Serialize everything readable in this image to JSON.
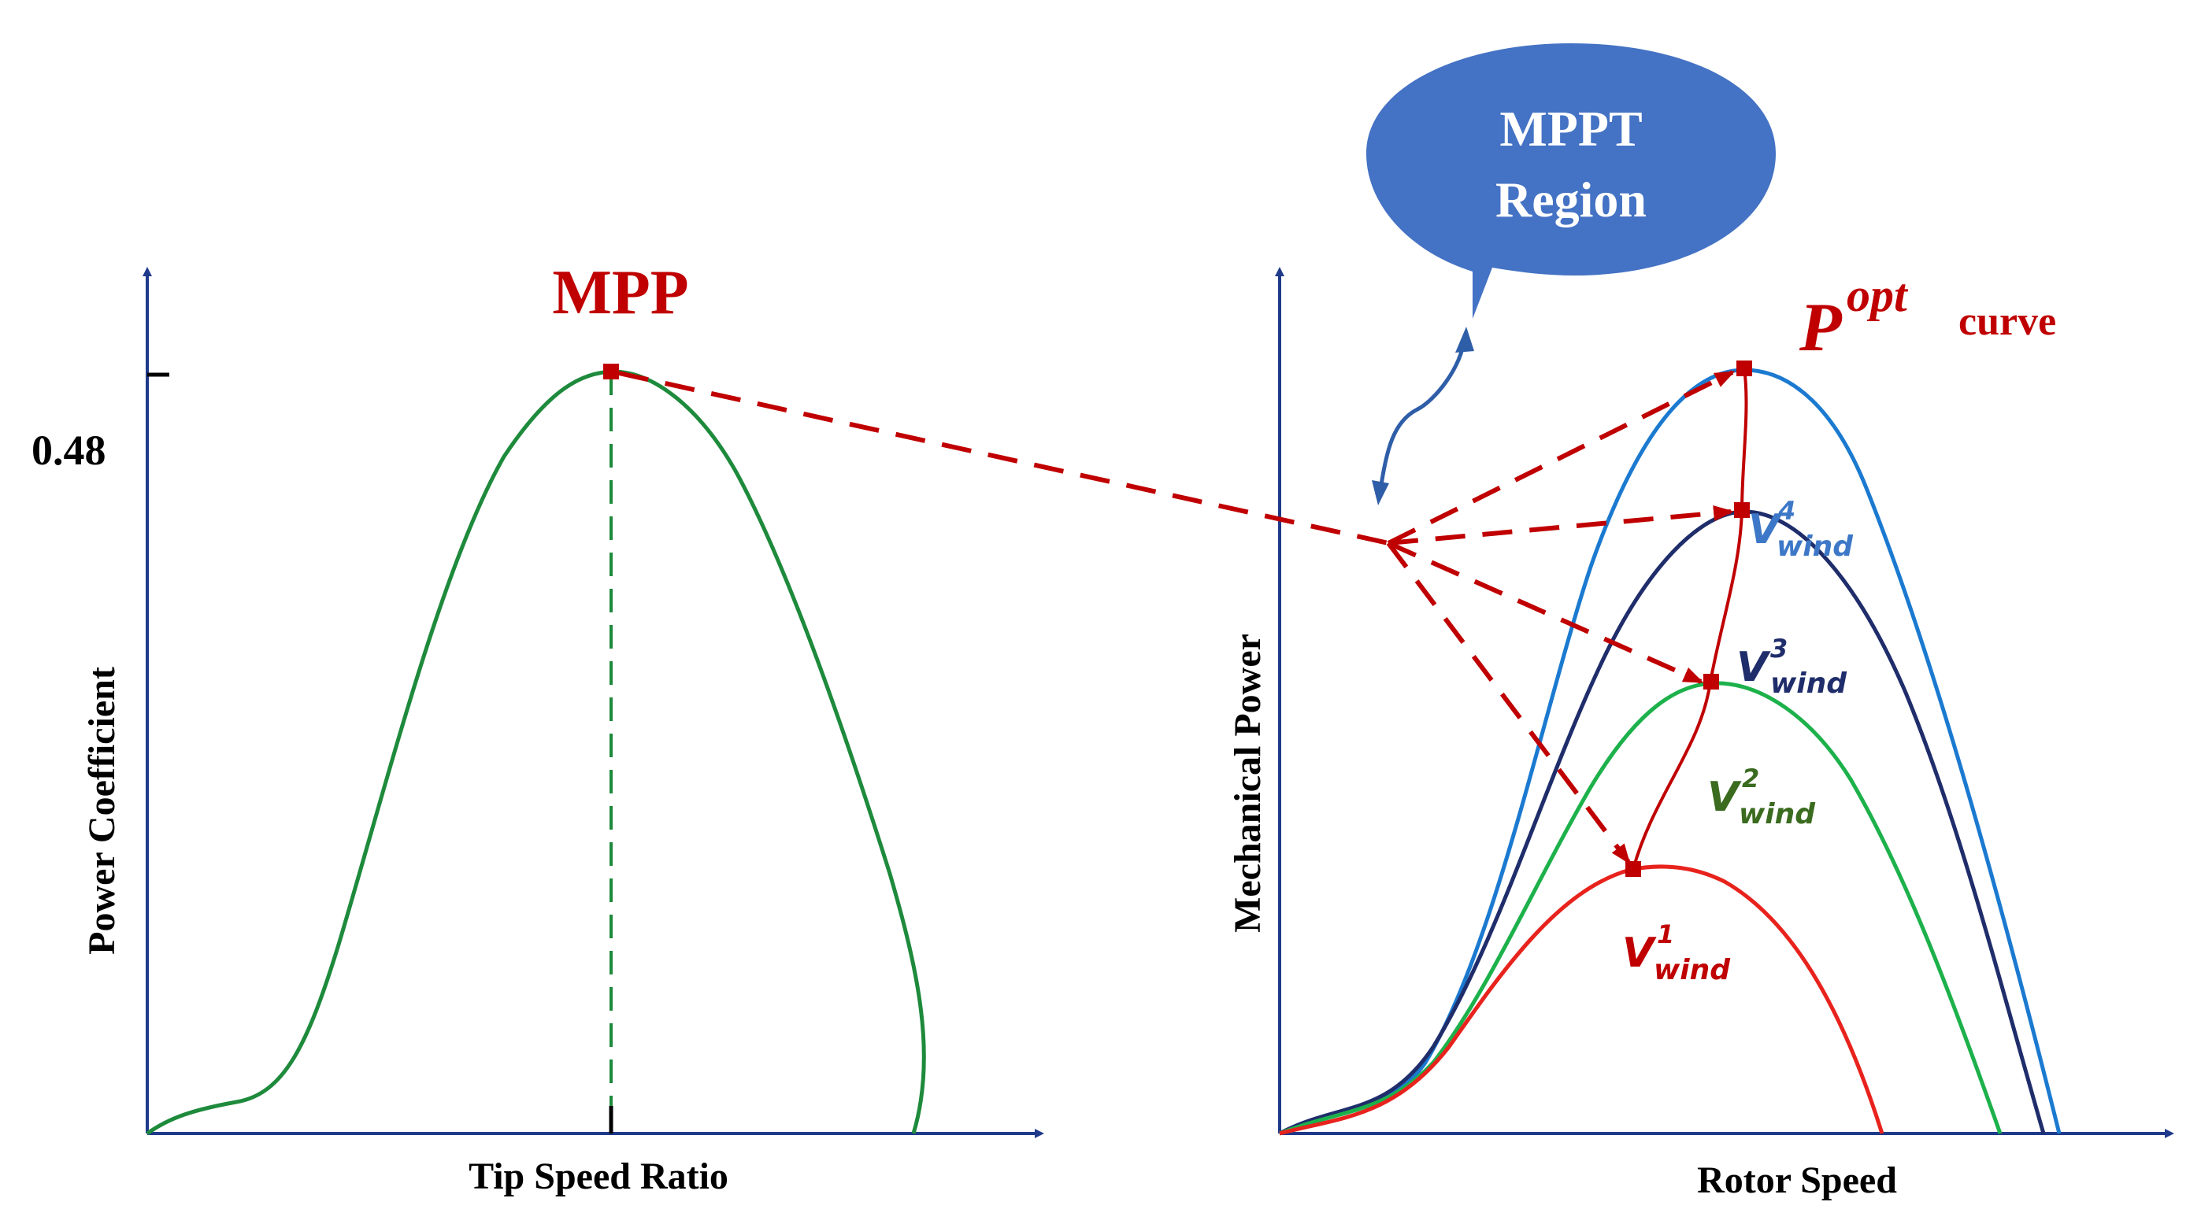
{
  "left_chart": {
    "y_label": "Power Coefficient",
    "x_label": "Tip Speed Ratio",
    "y_tick_label": "0.48",
    "peak_label": "MPP",
    "curve_color": "#1e8a3c"
  },
  "right_chart": {
    "y_label": "Mechanical Power",
    "x_label": "Rotor Speed",
    "opt_curve": {
      "symbol": "P",
      "superscript": "opt",
      "suffix": "curve",
      "color": "#c00000"
    },
    "callout": {
      "line1": "MPPT",
      "line2": "Region",
      "fill": "#4472c4"
    },
    "wind_curves": [
      {
        "symbol": "V",
        "superscript": "1",
        "subscript": "wind",
        "color": "#e8221c",
        "label_color": "#c00000"
      },
      {
        "symbol": "V",
        "superscript": "2",
        "subscript": "wind",
        "color": "#1db14b",
        "label_color": "#3a6b1f"
      },
      {
        "symbol": "V",
        "superscript": "3",
        "subscript": "wind",
        "color": "#1f2d6b",
        "label_color": "#1f2d6b"
      },
      {
        "symbol": "V",
        "superscript": "4",
        "subscript": "wind",
        "color": "#1b7ad0",
        "label_color": "#3d78c8"
      }
    ]
  },
  "colors": {
    "axis": "#1f3a8a",
    "arrow": "#c00000",
    "text": "#000000"
  }
}
